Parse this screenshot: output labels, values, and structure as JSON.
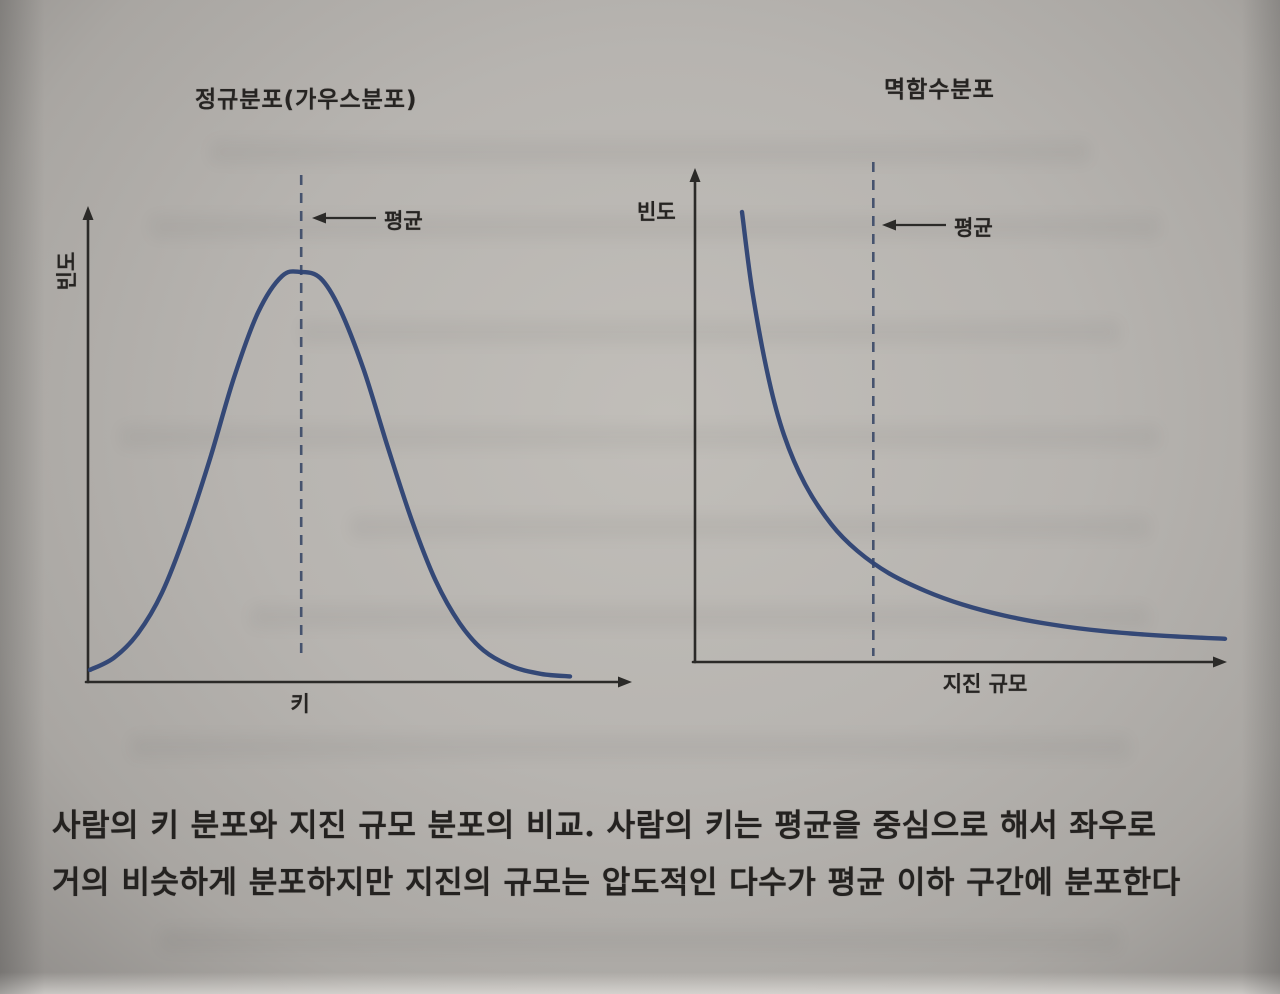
{
  "caption": {
    "line1": "사람의 키 분포와 지진 규모 분포의 비교. 사람의 키는 평균을 중심으로 해서 좌우로",
    "line2": "거의 비슷하게 분포하지만 지진의 규모는 압도적인 다수가 평균 이하 구간에 분포한다"
  },
  "chart_data": [
    {
      "type": "line",
      "curve_shape": "gaussian",
      "title": "정규분포(가우스분포)",
      "xlabel": "키",
      "ylabel": "빈도",
      "mean_label": "평균",
      "mean_x": 0.44,
      "line_color": "#2f4474",
      "x": [
        0.0,
        0.05,
        0.1,
        0.15,
        0.2,
        0.25,
        0.3,
        0.35,
        0.4,
        0.44,
        0.48,
        0.52,
        0.57,
        0.62,
        0.67,
        0.72,
        0.77,
        0.82,
        0.88,
        0.94,
        1.0
      ],
      "y": [
        0.02,
        0.05,
        0.11,
        0.21,
        0.36,
        0.54,
        0.74,
        0.9,
        0.99,
        1.0,
        0.985,
        0.91,
        0.76,
        0.57,
        0.39,
        0.24,
        0.135,
        0.068,
        0.028,
        0.01,
        0.004
      ],
      "xlim": [
        0,
        1
      ],
      "ylim": [
        0,
        1
      ],
      "grid": false,
      "legend": null
    },
    {
      "type": "line",
      "curve_shape": "power_law",
      "title": "멱함수분포",
      "xlabel": "지진 규모",
      "ylabel": "빈도",
      "mean_label": "평균",
      "mean_x": 0.33,
      "line_color": "#2f4474",
      "x": [
        0.08,
        0.1,
        0.13,
        0.16,
        0.2,
        0.25,
        0.3,
        0.36,
        0.43,
        0.5,
        0.58,
        0.67,
        0.77,
        0.88,
        1.0
      ],
      "y": [
        1.0,
        0.82,
        0.63,
        0.5,
        0.39,
        0.3,
        0.24,
        0.19,
        0.15,
        0.12,
        0.095,
        0.075,
        0.06,
        0.05,
        0.043
      ],
      "xlim": [
        0,
        1
      ],
      "ylim": [
        0,
        1
      ],
      "grid": false,
      "legend": null
    }
  ]
}
